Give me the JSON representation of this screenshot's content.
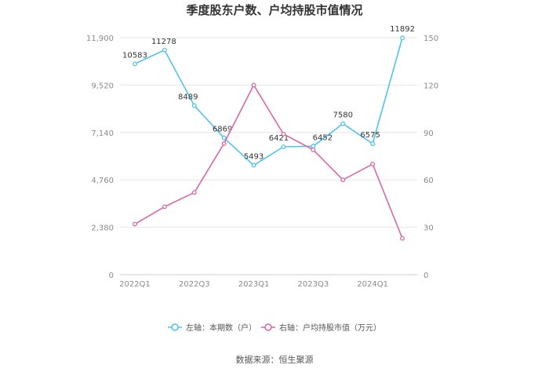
{
  "chart_data": {
    "type": "line",
    "title": "季度股东户数、户均持股市值情况",
    "categories": [
      "2022Q1",
      "2022Q2",
      "2022Q3",
      "2022Q4",
      "2023Q1",
      "2023Q2",
      "2023Q3",
      "2023Q4",
      "2024Q1",
      "2024Q2"
    ],
    "x_tick_labels": [
      "2022Q1",
      "2022Q3",
      "2023Q1",
      "2023Q3",
      "2024Q1"
    ],
    "left_axis": {
      "min": 0,
      "max": 11900,
      "ticks": [
        "0",
        "2,380",
        "4,760",
        "7,140",
        "9,520",
        "11,900"
      ]
    },
    "right_axis": {
      "min": 0,
      "max": 150,
      "ticks": [
        "0",
        "30",
        "60",
        "90",
        "120",
        "150"
      ]
    },
    "grid": true,
    "legend_position": "bottom",
    "series": [
      {
        "name": "左轴：本期数（户）",
        "axis": "left",
        "color": "#4fc3f0",
        "values": [
          10583,
          11278,
          8489,
          6869,
          5493,
          6421,
          6452,
          7580,
          6575,
          11892
        ],
        "labels": [
          "10583",
          "11278",
          "8489",
          "6869",
          "5493",
          "6421",
          "6452",
          "7580",
          "6575",
          "11892"
        ]
      },
      {
        "name": "右轴：户均持股市值（万元）",
        "axis": "right",
        "color": "#d966a8",
        "values": [
          32,
          43,
          52,
          83,
          120,
          89,
          79,
          60,
          70,
          23
        ]
      }
    ]
  },
  "source": "数据来源：恒生聚源"
}
